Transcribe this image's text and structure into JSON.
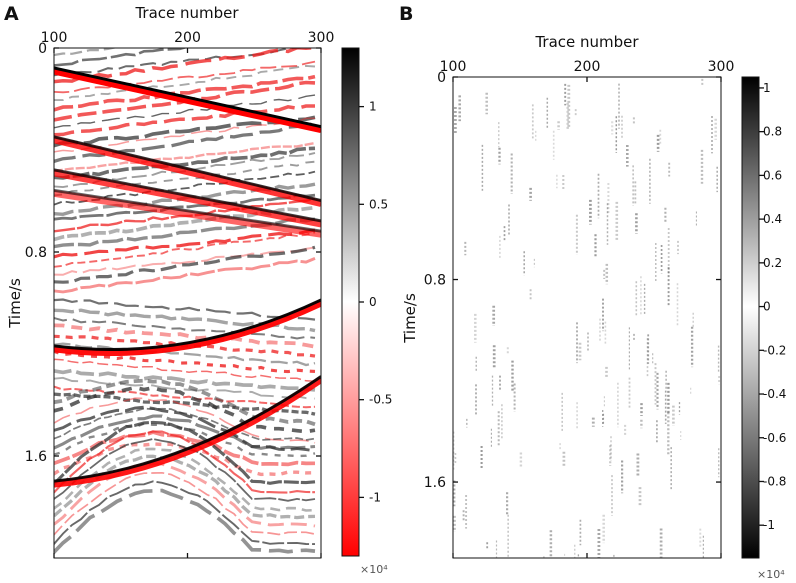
{
  "chart_data": [
    {
      "type": "heatmap",
      "panel_label": "A",
      "xlabel": "Trace number",
      "ylabel": "Time/s",
      "x_axis_position": "top",
      "xlim": [
        100,
        300
      ],
      "ylim": [
        0,
        2.0
      ],
      "y_inverted": true,
      "xticks": [
        {
          "value": 100,
          "label": "100"
        },
        {
          "value": 200,
          "label": "200"
        },
        {
          "value": 300,
          "label": "300"
        }
      ],
      "yticks": [
        {
          "value": 0,
          "label": "0"
        },
        {
          "value": 0.8,
          "label": "0.8"
        },
        {
          "value": 1.6,
          "label": "1.6"
        }
      ],
      "colormap": {
        "negative": "#ff0000",
        "zero": "#ffffff",
        "positive": "#000000"
      },
      "colorbar": {
        "range": [
          -1.3,
          1.3
        ],
        "multiplier": "×10⁴",
        "ticks": [
          {
            "value": 1,
            "label": "1"
          },
          {
            "value": 0.5,
            "label": "0.5"
          },
          {
            "value": 0,
            "label": "0"
          },
          {
            "value": -0.5,
            "label": "-0.5"
          },
          {
            "value": -1,
            "label": "-1"
          }
        ]
      },
      "reflectors": [
        {
          "t0": 0.09,
          "t1": 0.32,
          "amp": 1.0
        },
        {
          "t0": 0.36,
          "t1": 0.61,
          "amp": 0.8
        },
        {
          "t0": 0.49,
          "t1": 0.69,
          "amp": 0.75
        },
        {
          "t0": 0.57,
          "t1": 0.73,
          "amp": 0.6
        },
        {
          "t0": 1.18,
          "t1": 1.0,
          "amp": 0.95
        },
        {
          "t0": 1.71,
          "t1": 1.3,
          "amp": 0.9
        }
      ]
    },
    {
      "type": "heatmap",
      "panel_label": "B",
      "xlabel": "Trace number",
      "ylabel": "Time/s",
      "x_axis_position": "top",
      "xlim": [
        100,
        300
      ],
      "ylim": [
        0,
        1.9
      ],
      "y_inverted": true,
      "xticks": [
        {
          "value": 100,
          "label": "100"
        },
        {
          "value": 200,
          "label": "200"
        },
        {
          "value": 300,
          "label": "300"
        }
      ],
      "yticks": [
        {
          "value": 0,
          "label": "0"
        },
        {
          "value": 0.8,
          "label": "0.8"
        },
        {
          "value": 1.6,
          "label": "1.6"
        }
      ],
      "colormap": {
        "negative": "#000000",
        "zero": "#ffffff",
        "positive": "#000000"
      },
      "colorbar": {
        "range": [
          -1.15,
          1.05
        ],
        "multiplier": "×10⁴",
        "ticks": [
          {
            "value": 1,
            "label": "1"
          },
          {
            "value": 0.8,
            "label": "0.8"
          },
          {
            "value": 0.6,
            "label": "0.6"
          },
          {
            "value": 0.4,
            "label": "0.4"
          },
          {
            "value": 0.2,
            "label": "0.2"
          },
          {
            "value": 0,
            "label": "0"
          },
          {
            "value": -0.2,
            "label": "-0.2"
          },
          {
            "value": -0.4,
            "label": "-0.4"
          },
          {
            "value": -0.6,
            "label": "-0.6"
          },
          {
            "value": -0.8,
            "label": "-0.8"
          },
          {
            "value": -1,
            "label": "-1"
          }
        ]
      }
    }
  ]
}
